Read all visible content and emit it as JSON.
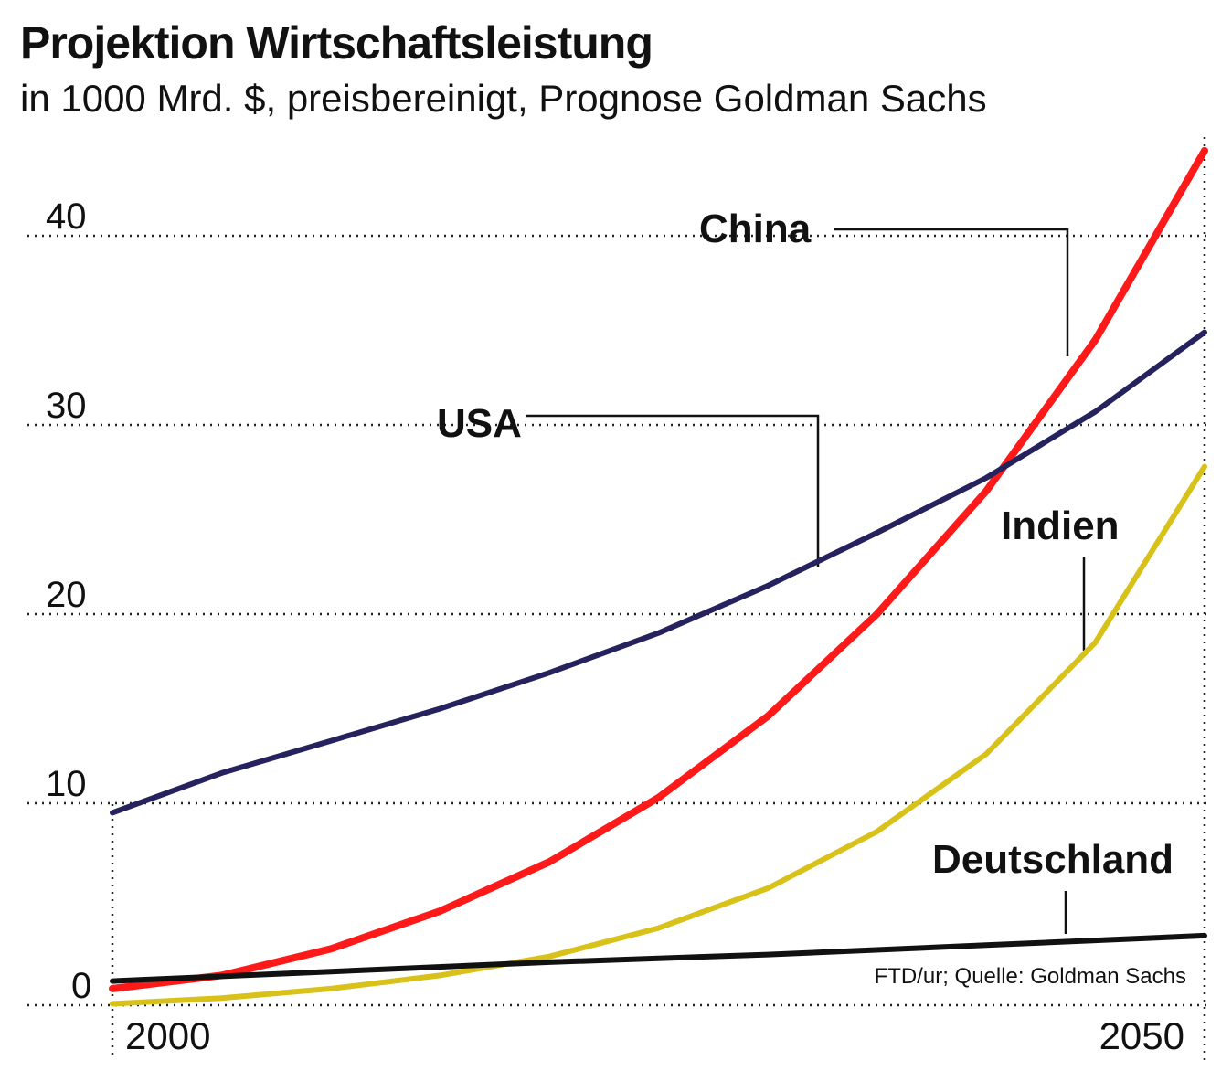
{
  "chart_data": {
    "type": "line",
    "title": "Projektion Wirtschaftsleistung",
    "subtitle": "in 1000 Mrd. $, preisbereinigt, Prognose Goldman Sachs",
    "x_ticks": [
      "2000",
      "2050"
    ],
    "xlim": [
      2000,
      2050
    ],
    "y_ticks": [
      "0",
      "10",
      "20",
      "30",
      "40"
    ],
    "ylim": [
      -1,
      44
    ],
    "grid": true,
    "series": [
      {
        "name": "China",
        "color": "#ff1a1a",
        "x": [
          2000,
          2005,
          2010,
          2015,
          2020,
          2025,
          2030,
          2035,
          2040,
          2045,
          2050
        ],
        "y": [
          0.2,
          0.9,
          2.3,
          4.3,
          6.9,
          10.3,
          14.6,
          20.0,
          26.5,
          34.5,
          44.5
        ]
      },
      {
        "name": "USA",
        "color": "#26225e",
        "x": [
          2000,
          2005,
          2010,
          2015,
          2020,
          2025,
          2030,
          2035,
          2040,
          2045,
          2050
        ],
        "y": [
          9.5,
          11.6,
          13.3,
          15.0,
          16.9,
          19.0,
          21.5,
          24.3,
          27.2,
          30.7,
          34.9
        ]
      },
      {
        "name": "Indien",
        "color": "#d8c21a",
        "x": [
          2000,
          2005,
          2010,
          2015,
          2020,
          2025,
          2030,
          2035,
          2040,
          2045,
          2050
        ],
        "y": [
          -0.6,
          -0.3,
          0.2,
          0.9,
          1.9,
          3.4,
          5.5,
          8.5,
          12.6,
          18.5,
          27.8
        ]
      },
      {
        "name": "Deutschland",
        "color": "#111111",
        "x": [
          2000,
          2010,
          2020,
          2030,
          2040,
          2050
        ],
        "y": [
          0.6,
          1.1,
          1.6,
          2.0,
          2.5,
          3.0
        ]
      }
    ],
    "source": "FTD/ur; Quelle: Goldman Sachs"
  }
}
